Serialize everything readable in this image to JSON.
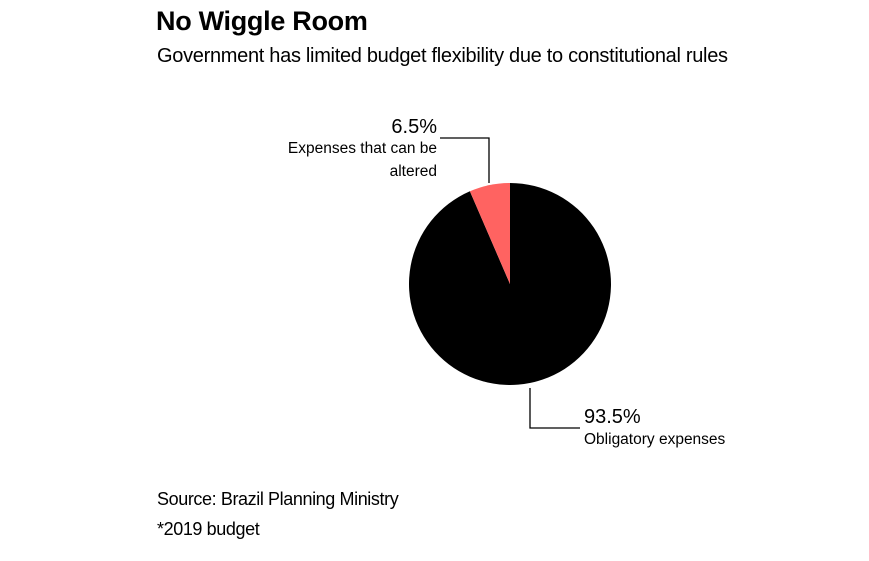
{
  "chart_data": {
    "type": "pie",
    "title": "No Wiggle Room",
    "subtitle": "Government has limited budget flexibility due to constitutional rules",
    "slices": [
      {
        "label_lines": [
          "Expenses that can be",
          "altered"
        ],
        "value": 6.5,
        "value_label": "6.5%",
        "color": "#ff6361"
      },
      {
        "label_lines": [
          "Obligatory expenses"
        ],
        "value": 93.5,
        "value_label": "93.5%",
        "color": "#000000"
      }
    ],
    "start": "12 o'clock",
    "direction": "counter-clockwise from top for first slice"
  },
  "footer": {
    "source": "Source: Brazil Planning Ministry",
    "note": "*2019 budget"
  }
}
